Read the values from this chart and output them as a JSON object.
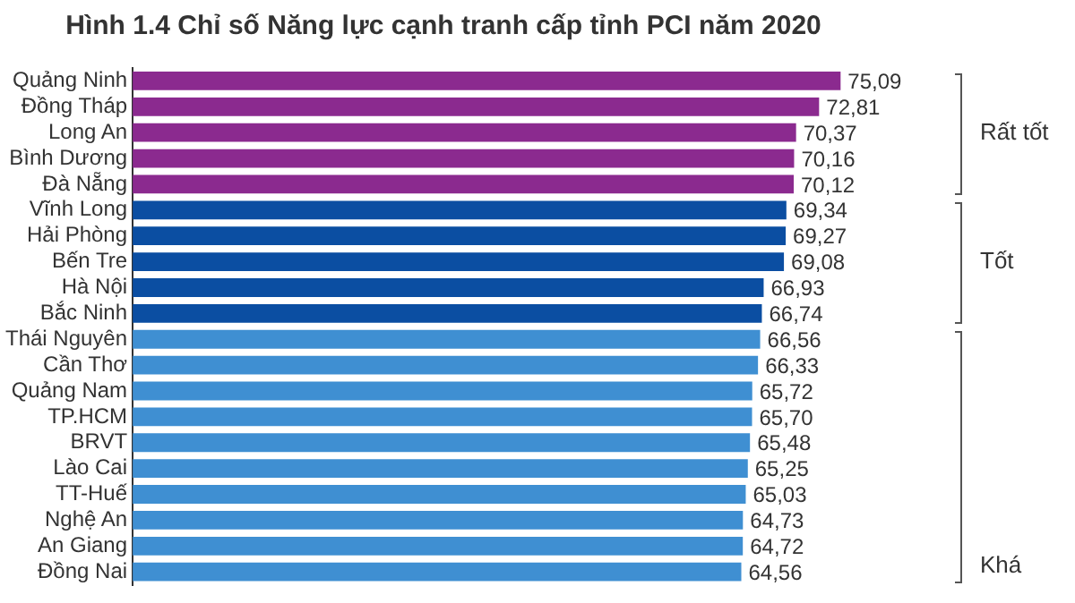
{
  "chart_data": {
    "type": "bar",
    "orientation": "horizontal",
    "title": "Hình 1.4 Chỉ số Năng lực cạnh tranh cấp tỉnh PCI năm 2020",
    "categories": [
      "Quảng Ninh",
      "Đồng Tháp",
      "Long An",
      "Bình Dương",
      "Đà Nẵng",
      "Vĩnh Long",
      "Hải Phòng",
      "Bến Tre",
      "Hà Nội",
      "Bắc Ninh",
      "Thái Nguyên",
      "Cần Thơ",
      "Quảng Nam",
      "TP.HCM",
      "BRVT",
      "Lào Cai",
      "TT-Huế",
      "Nghệ An",
      "An Giang",
      "Đồng Nai"
    ],
    "values": [
      75.09,
      72.81,
      70.37,
      70.16,
      70.12,
      69.34,
      69.27,
      69.08,
      66.93,
      66.74,
      66.56,
      66.33,
      65.72,
      65.7,
      65.48,
      65.25,
      65.03,
      64.73,
      64.72,
      64.56
    ],
    "value_labels": [
      "75,09",
      "72,81",
      "70,37",
      "70,16",
      "70,12",
      "69,34",
      "69,27",
      "69,08",
      "66,93",
      "66,74",
      "66,56",
      "66,33",
      "65,72",
      "65,70",
      "65,48",
      "65,25",
      "65,03",
      "64,73",
      "64,72",
      "64,56"
    ],
    "colors": [
      "#8b2a8f",
      "#8b2a8f",
      "#8b2a8f",
      "#8b2a8f",
      "#8b2a8f",
      "#0b4ea2",
      "#0b4ea2",
      "#0b4ea2",
      "#0b4ea2",
      "#0b4ea2",
      "#3f8fd2",
      "#3f8fd2",
      "#3f8fd2",
      "#3f8fd2",
      "#3f8fd2",
      "#3f8fd2",
      "#3f8fd2",
      "#3f8fd2",
      "#3f8fd2",
      "#3f8fd2"
    ],
    "tick_labels": "y",
    "legend": false,
    "annotations": [
      "Rất tốt",
      "Tốt",
      "Khá"
    ]
  }
}
